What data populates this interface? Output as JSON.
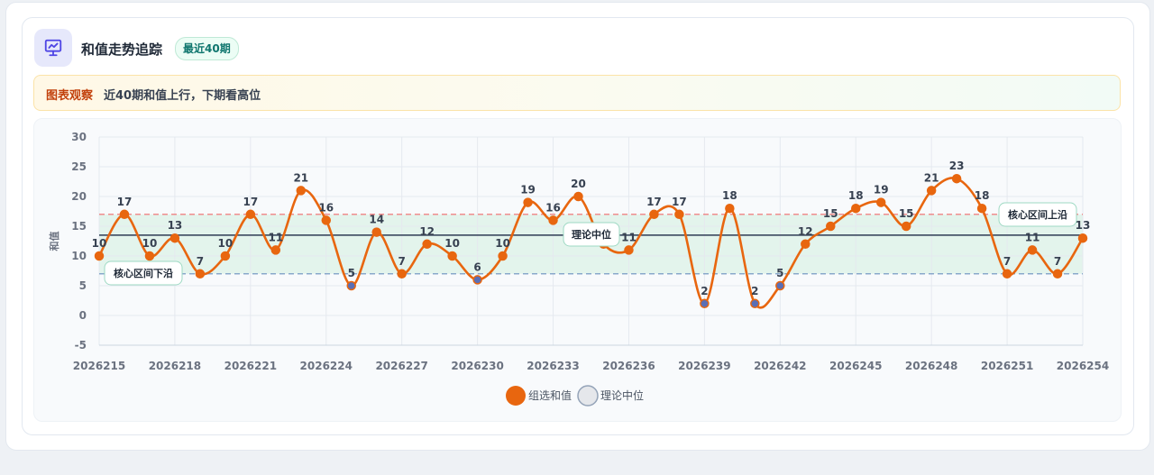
{
  "header": {
    "title": "和值走势追踪",
    "badge": "最近40期",
    "icon": "chart-presentation-icon"
  },
  "observation": {
    "tag": "图表观察",
    "text": "近40期和值上行，下期看高位"
  },
  "colors": {
    "series": "#e8660f",
    "median_line": "#475569",
    "upper_band": "#ef6b6b",
    "lower_band": "#6b8fbf",
    "band_fill": "#e3f4ec"
  },
  "chart_data": {
    "type": "line",
    "ylabel": "和值",
    "ylim": [
      -5,
      30
    ],
    "yticks": [
      -5,
      0,
      5,
      10,
      15,
      20,
      25,
      30
    ],
    "x": [
      "2026215",
      "2026216",
      "2026217",
      "2026218",
      "2026219",
      "2026220",
      "2026221",
      "2026222",
      "2026223",
      "2026224",
      "2026225",
      "2026226",
      "2026227",
      "2026228",
      "2026229",
      "2026230",
      "2026231",
      "2026232",
      "2026233",
      "2026234",
      "2026235",
      "2026236",
      "2026237",
      "2026238",
      "2026239",
      "2026240",
      "2026241",
      "2026242",
      "2026243",
      "2026244",
      "2026245",
      "2026246",
      "2026247",
      "2026248",
      "2026249",
      "2026250",
      "2026251",
      "2026252",
      "2026253",
      "2026254"
    ],
    "xticks": [
      "2026215",
      "2026218",
      "2026221",
      "2026224",
      "2026227",
      "2026230",
      "2026233",
      "2026236",
      "2026239",
      "2026242",
      "2026245",
      "2026248",
      "2026251",
      "2026254"
    ],
    "series": [
      {
        "name": "组选和值",
        "values": [
          10,
          17,
          10,
          13,
          7,
          10,
          17,
          11,
          21,
          16,
          5,
          14,
          7,
          12,
          10,
          6,
          10,
          19,
          16,
          20,
          12,
          11,
          17,
          17,
          2,
          18,
          2,
          5,
          12,
          15,
          18,
          19,
          15,
          21,
          23,
          18,
          7,
          11,
          7,
          13
        ]
      }
    ],
    "median": {
      "name": "理论中位",
      "value": 13.5
    },
    "band": {
      "upper": 17,
      "lower": 7
    },
    "annotations": {
      "upper": "核心区间上沿",
      "lower": "核心区间下沿",
      "median": "理论中位"
    },
    "legend": [
      "组选和值",
      "理论中位"
    ],
    "legend_position": "bottom",
    "grid": true
  }
}
